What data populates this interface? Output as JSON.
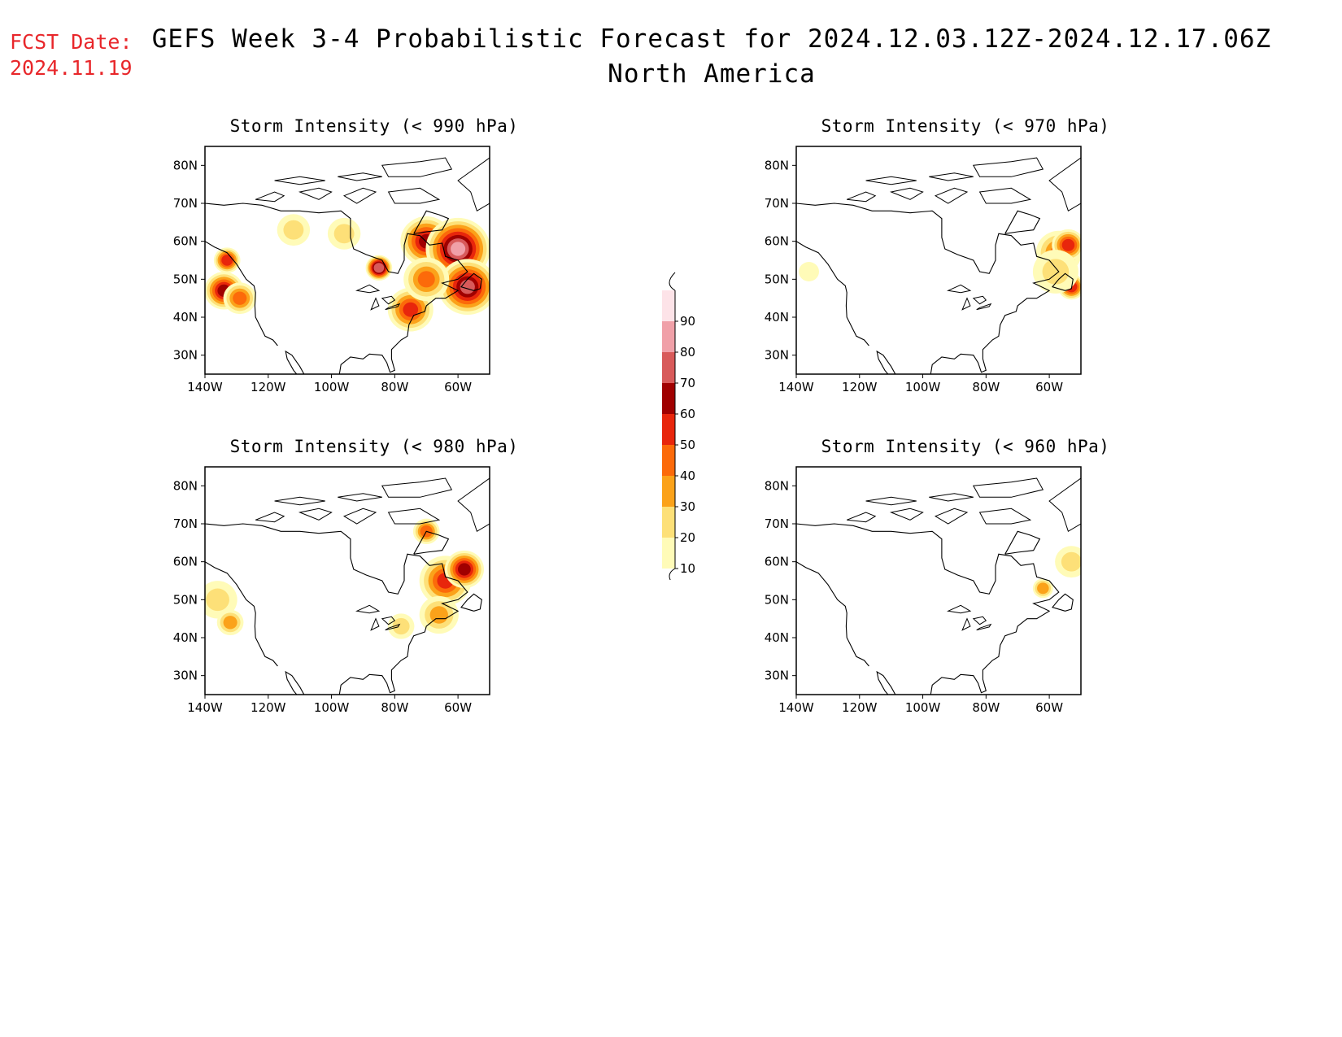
{
  "header": {
    "fcst_label": "FCST Date:",
    "fcst_date": "2024.11.19",
    "title": "GEFS Week 3-4 Probabilistic Forecast for 2024.12.03.12Z-2024.12.17.06Z",
    "subtitle": "North America"
  },
  "axes": {
    "lat_labels": [
      "80N",
      "70N",
      "60N",
      "50N",
      "40N",
      "30N"
    ],
    "lon_labels": [
      "140W",
      "120W",
      "100W",
      "80W",
      "60W"
    ]
  },
  "panels": [
    {
      "title": "Storm Intensity (< 990 hPa)"
    },
    {
      "title": "Storm Intensity (< 970 hPa)"
    },
    {
      "title": "Storm Intensity (< 980 hPa)"
    },
    {
      "title": "Storm Intensity (< 960 hPa)"
    }
  ],
  "colorbar": {
    "levels": [
      "10",
      "20",
      "30",
      "40",
      "50",
      "60",
      "70",
      "80",
      "90"
    ],
    "colors": [
      "#fffbb8",
      "#fde078",
      "#fba21a",
      "#fc6a0a",
      "#e8260c",
      "#a00000",
      "#d85a5a",
      "#f0a0a8",
      "#fde3e8"
    ]
  },
  "map_data": {
    "extent": {
      "lon": [
        -140,
        -50
      ],
      "lat": [
        25,
        85
      ]
    },
    "probability_blobs": [
      [
        {
          "lon": -134,
          "lat": 47,
          "r": 5,
          "level": 60
        },
        {
          "lon": -129,
          "lat": 45,
          "r": 4,
          "level": 40
        },
        {
          "lon": -133,
          "lat": 55,
          "r": 3,
          "level": 50
        },
        {
          "lon": -112,
          "lat": 63,
          "r": 4,
          "level": 20
        },
        {
          "lon": -96,
          "lat": 62,
          "r": 4,
          "level": 20
        },
        {
          "lon": -85,
          "lat": 53,
          "r": 3,
          "level": 70
        },
        {
          "lon": -70,
          "lat": 60,
          "r": 7,
          "level": 60
        },
        {
          "lon": -60,
          "lat": 58,
          "r": 9,
          "level": 80
        },
        {
          "lon": -57,
          "lat": 48,
          "r": 8,
          "level": 70
        },
        {
          "lon": -75,
          "lat": 42,
          "r": 6,
          "level": 50
        },
        {
          "lon": -70,
          "lat": 50,
          "r": 6,
          "level": 40
        }
      ],
      [
        {
          "lon": -57,
          "lat": 57,
          "r": 6,
          "level": 40
        },
        {
          "lon": -54,
          "lat": 59,
          "r": 4,
          "level": 50
        },
        {
          "lon": -53,
          "lat": 48,
          "r": 3,
          "level": 50
        },
        {
          "lon": -58,
          "lat": 52,
          "r": 6,
          "level": 20
        },
        {
          "lon": -136,
          "lat": 52,
          "r": 2,
          "level": 10
        }
      ],
      [
        {
          "lon": -136,
          "lat": 50,
          "r": 5,
          "level": 20
        },
        {
          "lon": -132,
          "lat": 44,
          "r": 3,
          "level": 30
        },
        {
          "lon": -64,
          "lat": 55,
          "r": 7,
          "level": 50
        },
        {
          "lon": -58,
          "lat": 58,
          "r": 5,
          "level": 60
        },
        {
          "lon": -70,
          "lat": 68,
          "r": 3,
          "level": 40
        },
        {
          "lon": -66,
          "lat": 46,
          "r": 5,
          "level": 30
        },
        {
          "lon": -78,
          "lat": 43,
          "r": 3,
          "level": 20
        }
      ],
      [
        {
          "lon": -53,
          "lat": 60,
          "r": 4,
          "level": 20
        },
        {
          "lon": -62,
          "lat": 53,
          "r": 2,
          "level": 30
        }
      ]
    ]
  }
}
